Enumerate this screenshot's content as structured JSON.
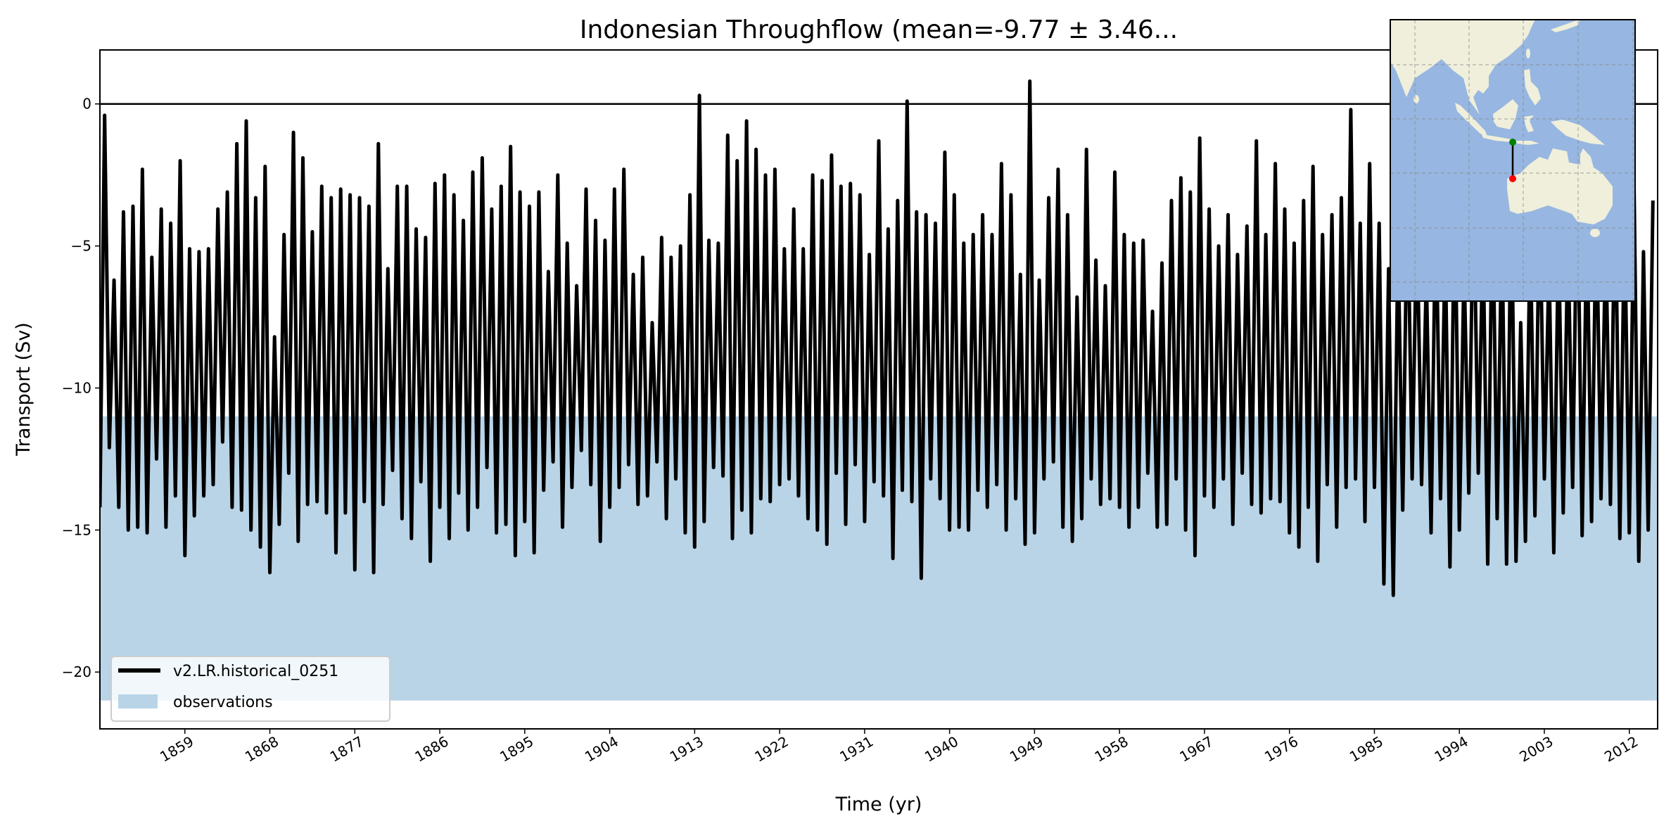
{
  "chart_data": {
    "type": "line",
    "title": "Indonesian Throughflow (mean=-9.77 ± 3.46...",
    "xlabel": "Time (yr)",
    "ylabel": "Transport (Sv)",
    "xlim": [
      1850,
      2015
    ],
    "ylim": [
      -22.0,
      1.9
    ],
    "grid": false,
    "legend_placement": "lower-left",
    "x_ticks": [
      "1859",
      "1868",
      "1877",
      "1886",
      "1895",
      "1904",
      "1913",
      "1922",
      "1931",
      "1940",
      "1949",
      "1958",
      "1967",
      "1976",
      "1985",
      "1994",
      "2003",
      "2012"
    ],
    "y_ticks": [
      0,
      -5,
      -10,
      -15,
      -20
    ],
    "y_tick_labels": [
      "0",
      "−5",
      "−10",
      "−15",
      "−20"
    ],
    "reference_line": 0,
    "series": [
      {
        "name": "v2.LR.historical_0251",
        "color": "#000000",
        "x_start": 1850,
        "x_step": 0.5,
        "values": [
          -14.2,
          -0.4,
          -12.1,
          -6.2,
          -14.2,
          -3.8,
          -15.0,
          -3.6,
          -14.9,
          -2.3,
          -15.1,
          -5.4,
          -12.5,
          -3.7,
          -14.9,
          -4.2,
          -13.8,
          -2.0,
          -15.9,
          -5.1,
          -14.5,
          -5.2,
          -13.8,
          -5.1,
          -13.4,
          -3.7,
          -11.9,
          -3.1,
          -14.2,
          -1.4,
          -14.3,
          -0.6,
          -15.0,
          -3.3,
          -15.6,
          -2.2,
          -16.5,
          -8.2,
          -14.8,
          -4.6,
          -13.0,
          -1.0,
          -15.4,
          -1.9,
          -14.1,
          -4.5,
          -14.0,
          -2.9,
          -14.4,
          -3.3,
          -15.8,
          -3.0,
          -14.4,
          -3.2,
          -16.4,
          -3.3,
          -14.0,
          -3.6,
          -16.5,
          -1.4,
          -14.1,
          -5.8,
          -12.9,
          -2.9,
          -14.6,
          -2.9,
          -15.3,
          -4.4,
          -13.3,
          -4.7,
          -16.1,
          -2.8,
          -14.2,
          -2.5,
          -15.3,
          -3.2,
          -13.7,
          -4.1,
          -15.0,
          -2.4,
          -14.2,
          -1.9,
          -12.8,
          -3.7,
          -15.1,
          -2.9,
          -14.8,
          -1.5,
          -15.9,
          -3.1,
          -14.7,
          -3.6,
          -15.8,
          -3.1,
          -13.6,
          -5.9,
          -12.6,
          -2.5,
          -14.9,
          -4.9,
          -13.5,
          -6.4,
          -12.2,
          -3.0,
          -13.4,
          -4.1,
          -15.4,
          -4.8,
          -14.2,
          -3.0,
          -13.5,
          -2.3,
          -12.7,
          -6.0,
          -14.1,
          -5.4,
          -13.8,
          -7.7,
          -12.6,
          -4.7,
          -14.6,
          -5.4,
          -13.2,
          -5.0,
          -15.1,
          -3.2,
          -15.6,
          0.3,
          -14.7,
          -4.8,
          -12.8,
          -4.9,
          -13.1,
          -1.1,
          -15.3,
          -2.0,
          -14.3,
          -0.6,
          -15.1,
          -1.6,
          -13.9,
          -2.5,
          -14.0,
          -2.3,
          -13.4,
          -5.1,
          -13.2,
          -3.7,
          -13.8,
          -5.1,
          -14.6,
          -2.5,
          -15.0,
          -2.7,
          -15.5,
          -1.8,
          -13.0,
          -2.9,
          -14.8,
          -2.8,
          -12.7,
          -3.2,
          -14.7,
          -5.3,
          -13.3,
          -1.3,
          -13.8,
          -4.4,
          -16.0,
          -3.4,
          -13.6,
          0.1,
          -14.0,
          -3.8,
          -16.7,
          -3.9,
          -13.2,
          -4.2,
          -13.9,
          -1.7,
          -15.0,
          -3.2,
          -14.9,
          -4.9,
          -15.0,
          -4.6,
          -13.6,
          -3.9,
          -14.2,
          -4.6,
          -13.4,
          -2.1,
          -15.0,
          -3.2,
          -13.9,
          -6.0,
          -15.5,
          0.8,
          -15.1,
          -6.2,
          -13.2,
          -3.3,
          -12.6,
          -2.3,
          -14.9,
          -3.9,
          -15.4,
          -6.8,
          -14.6,
          -1.6,
          -13.2,
          -5.5,
          -14.1,
          -6.4,
          -13.9,
          -2.4,
          -14.2,
          -4.6,
          -14.9,
          -4.9,
          -14.2,
          -4.8,
          -13.0,
          -7.3,
          -14.9,
          -5.6,
          -14.8,
          -3.4,
          -13.2,
          -2.6,
          -15.0,
          -3.1,
          -15.9,
          -1.2,
          -13.8,
          -3.7,
          -14.2,
          -5.0,
          -13.2,
          -3.9,
          -14.8,
          -5.3,
          -13.0,
          -4.3,
          -14.1,
          -1.3,
          -14.4,
          -4.6,
          -13.9,
          -2.1,
          -14.0,
          -3.7,
          -15.1,
          -4.9,
          -15.6,
          -3.4,
          -14.2,
          -2.2,
          -16.1,
          -4.6,
          -13.4,
          -3.9,
          -14.9,
          -3.3,
          -13.5,
          -0.2,
          -13.2,
          -4.2,
          -14.7,
          -2.1,
          -13.5,
          -4.2,
          -16.9,
          -5.8,
          -17.3,
          -4.8,
          -14.3,
          -2.8,
          -13.2,
          -3.8,
          -13.4,
          -6.0,
          -15.1,
          -3.3,
          -13.9,
          -4.9,
          -16.3,
          -2.6,
          -15.0,
          -5.6,
          -13.7,
          -2.8,
          -13.0,
          -4.5,
          -16.2,
          -2.8,
          -14.6,
          -4.2,
          -16.2,
          -2.8,
          -16.1,
          -7.7,
          -15.4,
          -4.4,
          -14.5,
          -3.0,
          -13.2,
          -5.5,
          -15.8,
          -4.5,
          -14.4,
          -4.6,
          -13.5,
          -2.1,
          -15.2,
          -3.9,
          -14.7,
          -3.4,
          -13.9,
          -4.6,
          -14.1,
          -2.6,
          -15.3,
          -3.9,
          -15.1,
          -2.9,
          -16.1,
          -5.2,
          -15.0,
          -3.4
        ]
      },
      {
        "name": "observations",
        "type": "band",
        "color": "#b9d4e7",
        "range": [
          -21.0,
          -11.0
        ]
      }
    ],
    "inset_map": {
      "ocean_color": "#97b6e1",
      "land_color": "#efefdb",
      "section_start_color": "#008000",
      "section_end_color": "#ff0000"
    }
  }
}
